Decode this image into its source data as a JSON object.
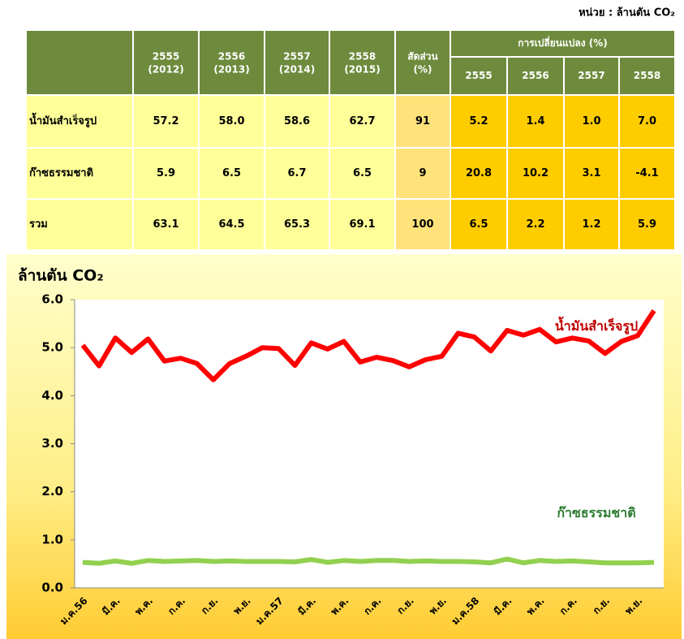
{
  "unit": "หน่วย : ล้านตัน CO₂",
  "table": {
    "columns": [
      [
        "2555",
        "(2012)"
      ],
      [
        "2556",
        "(2013)"
      ],
      [
        "2557",
        "(2014)"
      ],
      [
        "2558",
        "(2015)"
      ]
    ],
    "share_header": [
      "สัดส่วน",
      "(%)"
    ],
    "change_header": "การเปลี่ยนแปลง (%)",
    "change_columns": [
      "2555",
      "2556",
      "2557",
      "2558"
    ],
    "rows": [
      [
        "น้ำมันสำเร็จรูป",
        "57.2",
        "58.0",
        "58.6",
        "62.7",
        "91",
        "5.2",
        "1.4",
        "1.0",
        "7.0"
      ],
      [
        "ก๊าซธรรมชาติ",
        "5.9",
        "6.5",
        "6.7",
        "6.5",
        "9",
        "20.8",
        "10.2",
        "3.1",
        "-4.1"
      ],
      [
        "รวม",
        "63.1",
        "64.5",
        "65.3",
        "69.1",
        "100",
        "6.5",
        "2.2",
        "1.2",
        "5.9"
      ]
    ]
  },
  "chart_data": {
    "type": "line",
    "y_label": "ล้านตัน CO₂",
    "categories": [
      "ม.ค.56",
      null,
      "มี.ค.",
      null,
      "พ.ค.",
      null,
      "ก.ค.",
      null,
      "ก.ย.",
      null,
      "พ.ย.",
      null,
      "ม.ค.57",
      null,
      "มี.ค.",
      null,
      "พ.ค.",
      null,
      "ก.ค.",
      null,
      "ก.ย.",
      null,
      "พ.ย.",
      null,
      "ม.ค.58",
      null,
      "มี.ค.",
      null,
      "พ.ค.",
      null,
      "ก.ค.",
      null,
      "ก.ย.",
      null,
      "พ.ย.",
      null
    ],
    "series": [
      {
        "name": "น้ำมันสำเร็จรูป",
        "color": "#ff0000",
        "values": [
          5.05,
          4.62,
          5.2,
          4.9,
          5.18,
          4.72,
          4.78,
          4.67,
          4.33,
          4.67,
          4.82,
          5.0,
          4.98,
          4.63,
          5.1,
          4.97,
          5.13,
          4.7,
          4.8,
          4.73,
          4.6,
          4.75,
          4.82,
          5.3,
          5.22,
          4.93,
          5.36,
          5.26,
          5.38,
          5.12,
          5.2,
          5.14,
          4.88,
          5.13,
          5.25,
          5.77
        ]
      },
      {
        "name": "ก๊าซธรรมชาติ",
        "color": "#92d050",
        "values": [
          0.53,
          0.51,
          0.56,
          0.51,
          0.57,
          0.55,
          0.56,
          0.57,
          0.55,
          0.56,
          0.55,
          0.55,
          0.55,
          0.54,
          0.59,
          0.53,
          0.57,
          0.55,
          0.57,
          0.57,
          0.55,
          0.56,
          0.55,
          0.55,
          0.54,
          0.52,
          0.6,
          0.52,
          0.57,
          0.55,
          0.56,
          0.54,
          0.52,
          0.52,
          0.52,
          0.53
        ]
      }
    ],
    "ylim": [
      0,
      6
    ],
    "yticks": [
      {
        "value": 0,
        "label": "0.0"
      },
      {
        "value": 1,
        "label": "1.0"
      },
      {
        "value": 2,
        "label": "2.0"
      },
      {
        "value": 3,
        "label": "3.0"
      },
      {
        "value": 4,
        "label": "4.0"
      },
      {
        "value": 5,
        "label": "5.0"
      },
      {
        "value": 6,
        "label": "6.0"
      }
    ]
  }
}
